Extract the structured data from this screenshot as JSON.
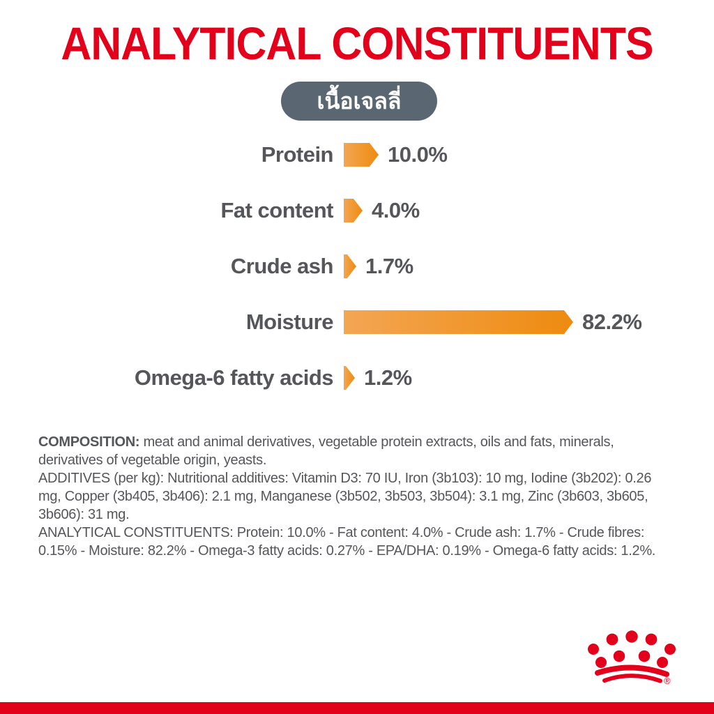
{
  "page": {
    "title": "ANALYTICAL CONSTITUENTS",
    "badge": "เนื้อเจลลี่",
    "colors": {
      "brand_red": "#e2001a",
      "text_gray": "#55565a",
      "badge_bg": "#5a6671",
      "bar_gradient_start": "#f3a653",
      "bar_gradient_end": "#ee8b10"
    }
  },
  "chart_data": {
    "type": "bar",
    "orientation": "horizontal",
    "bar_shape": "arrow",
    "categories": [
      "Protein",
      "Fat content",
      "Crude ash",
      "Moisture",
      "Omega-6 fatty acids"
    ],
    "values": [
      10.0,
      4.0,
      1.7,
      82.2,
      1.2
    ],
    "value_labels": [
      "10.0%",
      "4.0%",
      "1.7%",
      "82.2%",
      "1.2%"
    ],
    "unit": "%",
    "xlim": [
      0,
      100
    ],
    "grid": false,
    "legend": false,
    "title": "ANALYTICAL CONSTITUENTS"
  },
  "info": {
    "paragraphs": [
      {
        "label": "COMPOSITION:",
        "text": "meat and animal derivatives, vegetable protein extracts, oils and fats, minerals, derivatives of vegetable origin, yeasts."
      },
      {
        "label": "",
        "text": "ADDITIVES (per kg): Nutritional additives: Vitamin D3: 70 IU, Iron (3b103): 10 mg, Iodine (3b202): 0.26 mg, Copper (3b405, 3b406): 2.1 mg, Manganese (3b502, 3b503, 3b504): 3.1 mg, Zinc (3b603, 3b605, 3b606): 31 mg."
      },
      {
        "label": "",
        "text": "ANALYTICAL CONSTITUENTS: Protein: 10.0% - Fat content: 4.0% - Crude ash: 1.7% - Crude fibres: 0.15% - Moisture: 82.2% - Omega-3 fatty acids: 0.27% - EPA/DHA: 0.19% - Omega-6 fatty acids: 1.2%."
      }
    ]
  },
  "footer": {
    "logo_name": "royal-canin-crown",
    "bar_color": "#e2001a"
  }
}
